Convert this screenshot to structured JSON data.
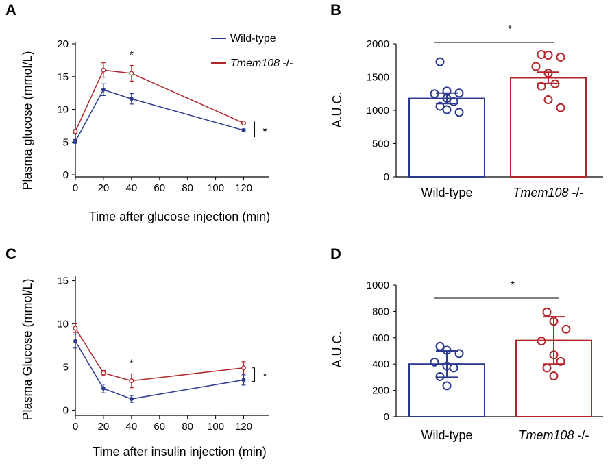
{
  "colors": {
    "wild_type": "#2b3990",
    "tmem108": "#b2252b",
    "axis": "#000000"
  },
  "legend": {
    "wild_type": "Wild-type",
    "tmem108": "Tmem108 -/-"
  },
  "chart_data": [
    {
      "panel": "A",
      "type": "line",
      "xlabel": "Time after glucose injection (min)",
      "ylabel": "Plasma glucose (mmol/L)",
      "x": [
        0,
        20,
        40,
        120
      ],
      "xticks": [
        "0",
        "20",
        "40",
        "60",
        "80",
        "100",
        "120"
      ],
      "yticks": [
        "0",
        "5",
        "10",
        "15",
        "20"
      ],
      "xlim": [
        0,
        130
      ],
      "ylim": [
        0,
        20
      ],
      "series": [
        {
          "name": "Wild-type",
          "values": [
            5.1,
            13.0,
            11.6,
            6.8
          ],
          "errors": [
            0.3,
            0.9,
            0.8,
            0.2
          ]
        },
        {
          "name": "Tmem108 -/-",
          "values": [
            6.6,
            16.0,
            15.5,
            7.9
          ],
          "errors": [
            0.3,
            1.1,
            1.2,
            0.3
          ]
        }
      ],
      "significance": [
        "*",
        "*"
      ]
    },
    {
      "panel": "B",
      "type": "bar",
      "ylabel": "A.U.C.",
      "categories": [
        "Wild-type",
        "Tmem108 -/-"
      ],
      "values": [
        1180,
        1490
      ],
      "errors": [
        80,
        85
      ],
      "yticks": [
        "0",
        "500",
        "1000",
        "1500",
        "2000"
      ],
      "ylim": [
        0,
        2000
      ],
      "points": [
        [
          1730,
          1290,
          1260,
          1250,
          1180,
          1130,
          1060,
          1010,
          970
        ],
        [
          1840,
          1830,
          1800,
          1660,
          1560,
          1400,
          1360,
          1160,
          1040
        ]
      ],
      "significance": "*"
    },
    {
      "panel": "C",
      "type": "line",
      "xlabel": "Time after insulin injection (min)",
      "ylabel": "Plasma Glucose (mmol/L)",
      "x": [
        0,
        20,
        40,
        120
      ],
      "xticks": [
        "0",
        "20",
        "40",
        "60",
        "80",
        "100",
        "120"
      ],
      "yticks": [
        "0",
        "5",
        "10",
        "15"
      ],
      "xlim": [
        0,
        130
      ],
      "ylim": [
        -1,
        16
      ],
      "series": [
        {
          "name": "Wild-type",
          "values": [
            8.0,
            2.5,
            1.3,
            3.5
          ],
          "errors": [
            0.8,
            0.5,
            0.4,
            0.6
          ]
        },
        {
          "name": "Tmem108 -/-",
          "values": [
            9.5,
            4.3,
            3.4,
            4.9
          ],
          "errors": [
            0.5,
            0.3,
            0.8,
            0.7
          ]
        }
      ],
      "significance": [
        "*",
        "*"
      ]
    },
    {
      "panel": "D",
      "type": "bar",
      "ylabel": "A.U.C.",
      "categories": [
        "Wild-type",
        "Tmem108 -/-"
      ],
      "values": [
        400,
        580
      ],
      "errors": [
        100,
        180
      ],
      "yticks": [
        "0",
        "200",
        "400",
        "600",
        "800",
        "1000"
      ],
      "ylim": [
        0,
        1000
      ],
      "points": [
        [
          535,
          505,
          480,
          415,
          385,
          370,
          305,
          235
        ],
        [
          795,
          725,
          665,
          575,
          470,
          420,
          370,
          310
        ]
      ],
      "significance": "*"
    }
  ]
}
